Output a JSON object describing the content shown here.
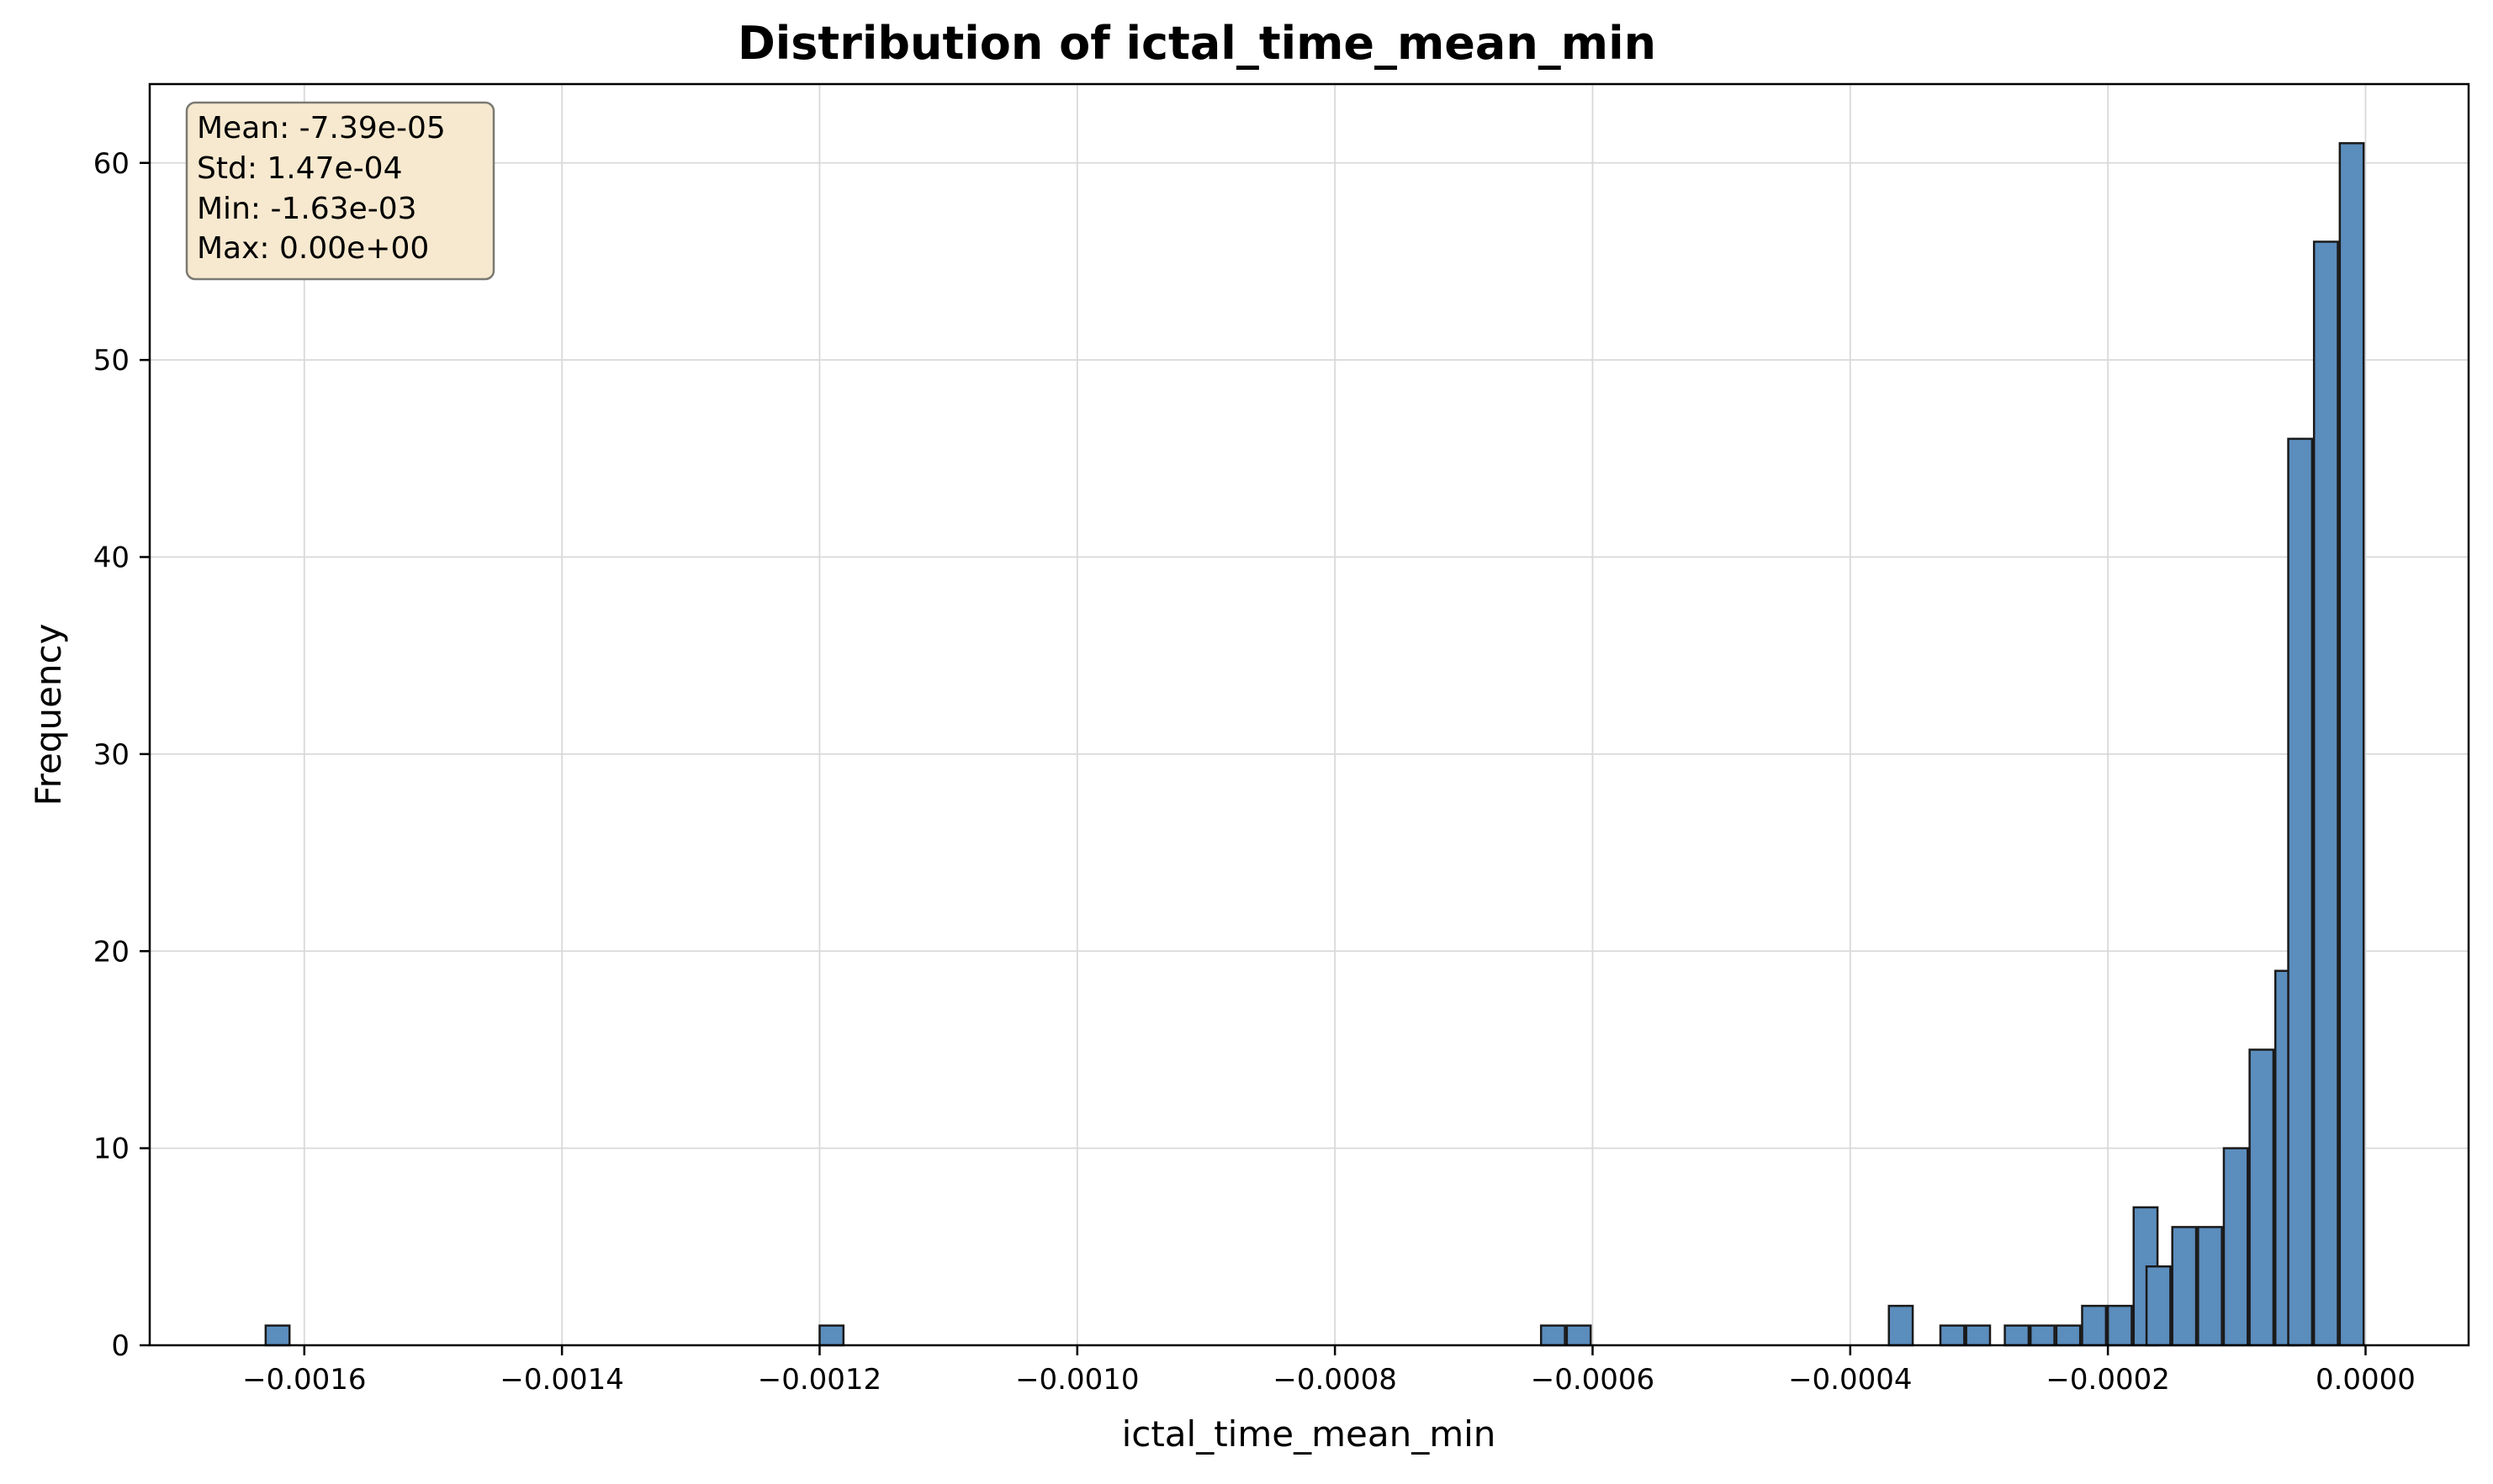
{
  "chart_data": {
    "type": "histogram",
    "title": "Distribution of ictal_time_mean_min",
    "xlabel": "ictal_time_mean_min",
    "ylabel": "Frequency",
    "xlim": [
      -0.00172,
      8e-05
    ],
    "ylim": [
      0,
      64
    ],
    "x_ticks": [
      -0.0016,
      -0.0014,
      -0.0012,
      -0.001,
      -0.0008,
      -0.0006,
      -0.0004,
      -0.0002,
      0.0
    ],
    "x_tick_labels": [
      "−0.0016",
      "−0.0014",
      "−0.0012",
      "−0.0010",
      "−0.0008",
      "−0.0006",
      "−0.0004",
      "−0.0002",
      "0.0000"
    ],
    "y_ticks": [
      0,
      10,
      20,
      30,
      40,
      50,
      60
    ],
    "y_tick_labels": [
      "0",
      "10",
      "20",
      "30",
      "40",
      "50",
      "60"
    ],
    "grid": true,
    "bin_width": 1.85e-05,
    "bin_starts": [
      -0.00163,
      -0.0012,
      -0.00064,
      -0.00062,
      -0.00037,
      -0.00033,
      -0.00031,
      -0.00028,
      -0.00026,
      -0.00024,
      -0.00022,
      -0.0002,
      -0.00018,
      -0.00017,
      -0.00015,
      -0.00013,
      -0.00011,
      -9e-05,
      -7e-05,
      -6e-05,
      -4e-05,
      -2e-05
    ],
    "counts": [
      1,
      1,
      1,
      1,
      2,
      1,
      1,
      1,
      1,
      1,
      2,
      2,
      7,
      4,
      6,
      6,
      10,
      15,
      19,
      46,
      56,
      61
    ],
    "bar_color": "#5b8dbd",
    "bar_edge_color": "#1a1a1a",
    "stats_box": {
      "lines": [
        "Mean: -7.39e-05",
        "Std: 1.47e-04",
        "Min: -1.63e-03",
        "Max: 0.00e+00"
      ],
      "placement": "top-left",
      "background": "#f7e9cf",
      "border": "#7a7a72"
    }
  }
}
